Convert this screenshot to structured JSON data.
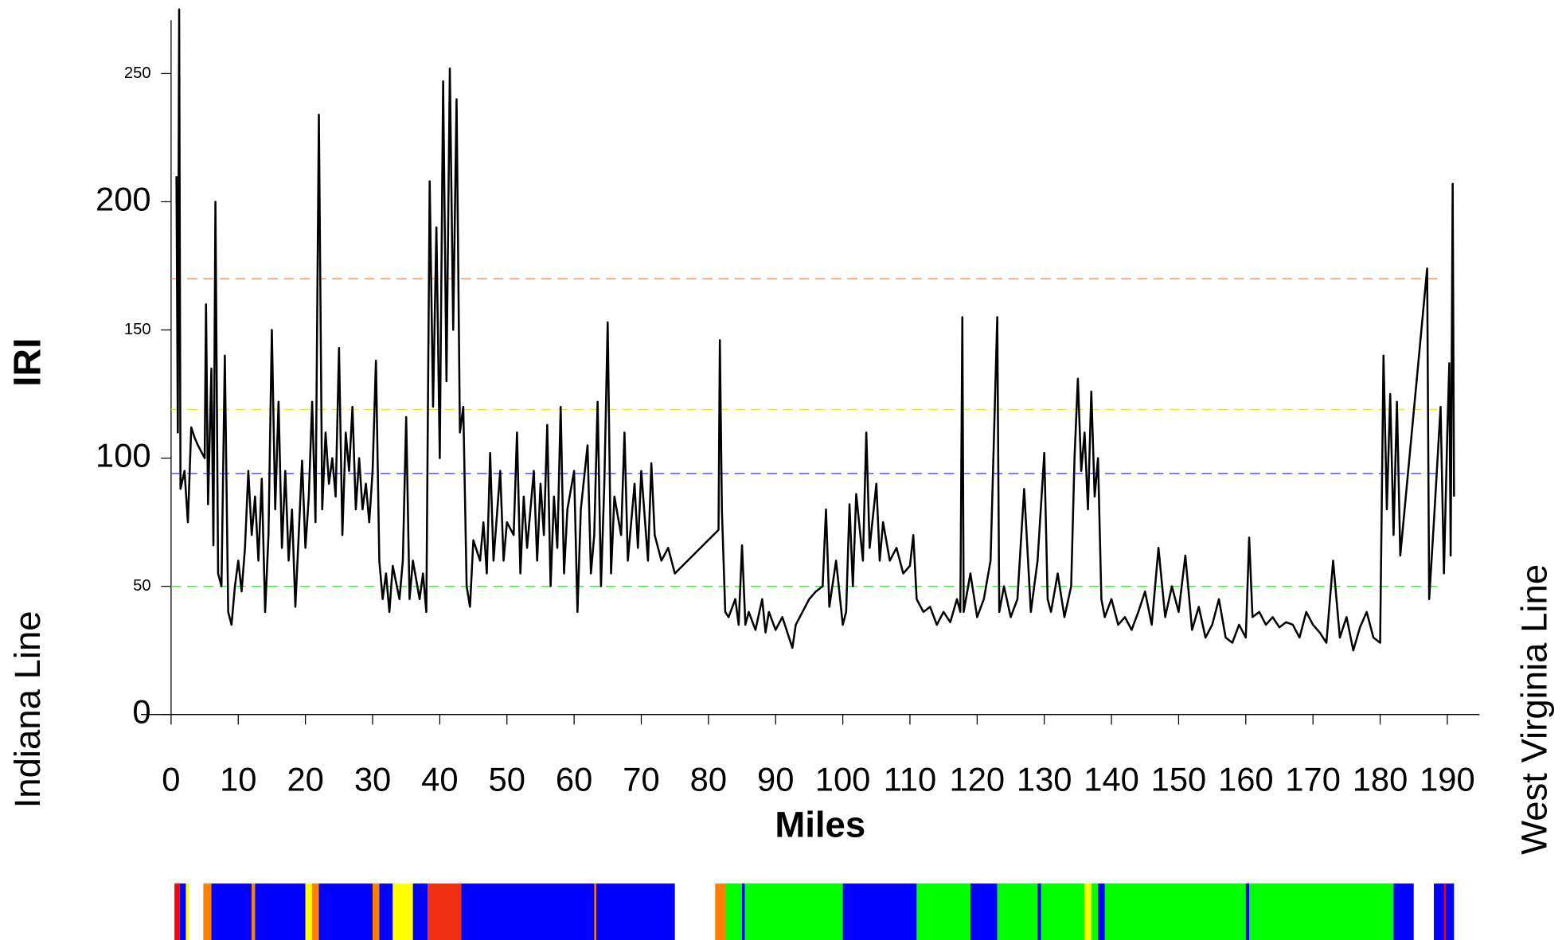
{
  "chart_data": {
    "type": "line",
    "ylabel": "IRI",
    "xlabel": "Miles",
    "left_label": "Indiana Line",
    "right_label": "West Virginia Line",
    "color": "#000000",
    "xlim": [
      0,
      195
    ],
    "ylim": [
      0,
      275
    ],
    "xticks": [
      0,
      10,
      20,
      30,
      40,
      50,
      60,
      70,
      80,
      90,
      100,
      110,
      120,
      130,
      140,
      150,
      160,
      170,
      180,
      190
    ],
    "yticks": [
      0,
      50,
      100,
      150,
      200,
      250
    ],
    "reference_lines": [
      {
        "value": 170,
        "color": "#ff8040"
      },
      {
        "value": 119,
        "color": "#e8e830"
      },
      {
        "value": 94,
        "color": "#3030ff"
      },
      {
        "value": 50,
        "color": "#40e040"
      }
    ],
    "x": [
      0.8,
      1,
      1.2,
      1.4,
      2,
      2.5,
      3,
      3.5,
      4,
      5,
      5.2,
      5.5,
      6,
      6.3,
      6.6,
      7,
      7.5,
      8,
      8.5,
      9,
      9.5,
      10,
      10.5,
      11,
      11.5,
      12,
      12.5,
      13,
      13.5,
      14,
      14.5,
      15,
      15.5,
      16,
      16.5,
      17,
      17.5,
      18,
      18.5,
      19,
      19.5,
      20,
      20.5,
      21,
      21.5,
      22,
      22.5,
      23,
      23.5,
      24,
      24.5,
      25,
      25.5,
      26,
      26.5,
      27,
      27.5,
      28,
      28.5,
      29,
      29.5,
      30,
      30.5,
      31,
      31.5,
      32,
      32.5,
      33,
      34,
      34.5,
      35,
      35.5,
      36,
      37,
      37.5,
      38,
      38.5,
      39,
      39.5,
      40,
      40.5,
      41,
      41.5,
      42,
      42.5,
      43,
      43.5,
      44,
      44.5,
      45,
      46,
      46.5,
      47,
      47.5,
      48,
      49,
      49.5,
      50,
      51,
      51.5,
      52,
      52.5,
      53,
      54,
      54.5,
      55,
      55.5,
      56,
      56.5,
      57,
      57.5,
      58,
      58.5,
      59,
      60,
      60.5,
      61,
      62,
      62.5,
      63,
      63.5,
      64,
      64.5,
      65,
      65.5,
      66,
      67,
      67.5,
      68,
      69,
      69.5,
      70,
      71,
      71.5,
      72,
      73,
      74,
      75,
      81.5,
      81.7,
      82,
      82.5,
      83,
      84,
      84.5,
      85,
      85.5,
      86,
      87,
      88,
      88.5,
      89,
      90,
      91,
      92,
      92.5,
      93,
      94,
      95,
      96,
      97,
      97.5,
      98,
      99,
      100,
      100.5,
      101,
      101.5,
      102,
      103,
      103.5,
      104,
      105,
      105.5,
      106,
      107,
      108,
      109,
      110,
      110.5,
      111,
      112,
      113,
      114,
      115,
      116,
      117,
      117.5,
      117.8,
      118,
      119,
      120,
      121,
      122,
      123,
      123.3,
      124,
      125,
      126,
      127,
      128,
      129,
      130,
      130.5,
      131,
      132,
      133,
      134,
      134.5,
      135,
      135.5,
      136,
      136.5,
      137,
      137.5,
      138,
      138.5,
      139,
      140,
      141,
      142,
      143,
      144,
      145,
      146,
      147,
      148,
      149,
      150,
      151,
      152,
      153,
      154,
      155,
      156,
      157,
      158,
      159,
      160,
      160.5,
      161,
      162,
      163,
      164,
      165,
      166,
      167,
      168,
      169,
      170,
      171,
      172,
      173,
      174,
      175,
      176,
      177,
      178,
      179,
      180,
      180.5,
      181,
      181.5,
      182,
      182.5,
      183,
      187,
      187.3,
      188,
      189,
      189.5,
      190,
      190.3,
      190.5,
      190.8,
      191
    ],
    "values": [
      210,
      110,
      275,
      88,
      95,
      75,
      112,
      108,
      105,
      100,
      160,
      82,
      135,
      66,
      200,
      55,
      50,
      140,
      40,
      35,
      50,
      60,
      48,
      65,
      95,
      70,
      85,
      60,
      92,
      40,
      70,
      150,
      80,
      122,
      65,
      95,
      60,
      80,
      42,
      70,
      99,
      65,
      85,
      122,
      75,
      234,
      80,
      110,
      90,
      100,
      85,
      143,
      70,
      110,
      95,
      120,
      80,
      100,
      80,
      90,
      75,
      95,
      138,
      60,
      45,
      55,
      40,
      58,
      45,
      60,
      116,
      45,
      60,
      45,
      55,
      40,
      208,
      120,
      190,
      100,
      247,
      130,
      252,
      150,
      240,
      110,
      120,
      50,
      42,
      68,
      60,
      75,
      55,
      102,
      60,
      95,
      60,
      75,
      70,
      110,
      55,
      85,
      65,
      95,
      60,
      90,
      70,
      113,
      50,
      85,
      65,
      120,
      55,
      80,
      95,
      40,
      80,
      105,
      55,
      70,
      122,
      50,
      90,
      153,
      55,
      85,
      70,
      110,
      60,
      90,
      65,
      95,
      60,
      98,
      70,
      60,
      65,
      55,
      72,
      146,
      80,
      40,
      38,
      45,
      35,
      66,
      35,
      40,
      33,
      45,
      32,
      40,
      33,
      38,
      30,
      26,
      35,
      40,
      45,
      48,
      50,
      80,
      42,
      60,
      35,
      40,
      82,
      50,
      86,
      60,
      110,
      65,
      90,
      60,
      75,
      60,
      65,
      55,
      58,
      70,
      45,
      40,
      42,
      35,
      40,
      36,
      45,
      40,
      155,
      40,
      55,
      38,
      45,
      60,
      155,
      40,
      50,
      38,
      45,
      88,
      40,
      60,
      102,
      45,
      40,
      55,
      38,
      50,
      100,
      131,
      95,
      110,
      80,
      126,
      85,
      100,
      45,
      38,
      45,
      35,
      38,
      33,
      40,
      48,
      35,
      65,
      38,
      50,
      40,
      62,
      33,
      42,
      30,
      35,
      45,
      30,
      28,
      35,
      30,
      69,
      38,
      40,
      35,
      38,
      34,
      36,
      35,
      30,
      40,
      35,
      32,
      28,
      60,
      30,
      38,
      25,
      34,
      40,
      30,
      28,
      140,
      80,
      125,
      70,
      122,
      62,
      174,
      45,
      75,
      120,
      55,
      110,
      137,
      62,
      207,
      85
    ],
    "condition_strip": [
      {
        "from": 0.5,
        "to": 1.3,
        "color": "#ff0000"
      },
      {
        "from": 1.3,
        "to": 2.2,
        "color": "#0000ff"
      },
      {
        "from": 2.2,
        "to": 2.6,
        "color": "#ffff00"
      },
      {
        "from": 4.8,
        "to": 6,
        "color": "#ff8000"
      },
      {
        "from": 6,
        "to": 12,
        "color": "#0000ff"
      },
      {
        "from": 12,
        "to": 12.5,
        "color": "#ff8000"
      },
      {
        "from": 12.5,
        "to": 20,
        "color": "#0000ff"
      },
      {
        "from": 20,
        "to": 21,
        "color": "#ffff00"
      },
      {
        "from": 21,
        "to": 22,
        "color": "#ff8000"
      },
      {
        "from": 22,
        "to": 30,
        "color": "#0000ff"
      },
      {
        "from": 30,
        "to": 31,
        "color": "#ff8000"
      },
      {
        "from": 31,
        "to": 33,
        "color": "#0000ff"
      },
      {
        "from": 33,
        "to": 36,
        "color": "#ffff00"
      },
      {
        "from": 36,
        "to": 38.2,
        "color": "#0000ff"
      },
      {
        "from": 38.2,
        "to": 43.2,
        "color": "#f03010"
      },
      {
        "from": 43.2,
        "to": 75,
        "color": "#0000ff"
      },
      {
        "from": 63,
        "to": 63.3,
        "color": "#ff8000"
      },
      {
        "from": 81,
        "to": 82.5,
        "color": "#ff8000"
      },
      {
        "from": 82.5,
        "to": 100,
        "color": "#00ff00"
      },
      {
        "from": 85,
        "to": 85.4,
        "color": "#0000ff"
      },
      {
        "from": 100,
        "to": 111,
        "color": "#0000ff"
      },
      {
        "from": 111,
        "to": 119,
        "color": "#00ff00"
      },
      {
        "from": 119,
        "to": 123,
        "color": "#0000ff"
      },
      {
        "from": 123,
        "to": 182,
        "color": "#00ff00"
      },
      {
        "from": 129,
        "to": 129.5,
        "color": "#0000ff"
      },
      {
        "from": 136,
        "to": 137,
        "color": "#ffff00"
      },
      {
        "from": 138,
        "to": 139,
        "color": "#0000ff"
      },
      {
        "from": 160,
        "to": 160.5,
        "color": "#0000ff"
      },
      {
        "from": 182,
        "to": 185,
        "color": "#0000ff"
      },
      {
        "from": 188,
        "to": 191,
        "color": "#0000ff"
      },
      {
        "from": 189.5,
        "to": 189.8,
        "color": "#ff0000"
      }
    ]
  }
}
